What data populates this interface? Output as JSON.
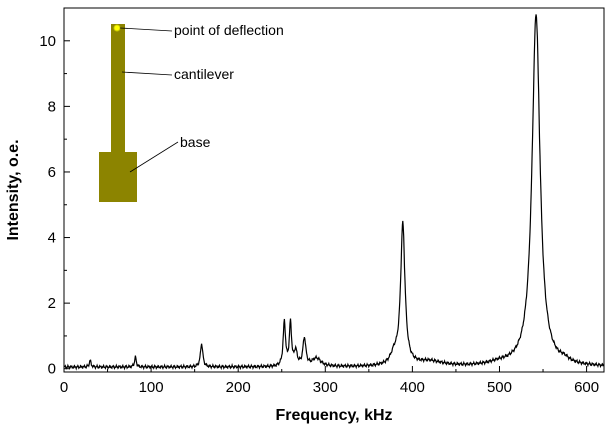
{
  "chart_data": {
    "type": "line",
    "xlabel": "Frequency, kHz",
    "ylabel": "Intensity, o.e.",
    "xlim": [
      0,
      620
    ],
    "ylim": [
      -0.1,
      11.0
    ],
    "x_ticks": [
      0,
      100,
      200,
      300,
      400,
      500,
      600
    ],
    "y_ticks": [
      0,
      2,
      4,
      6,
      8,
      10
    ],
    "grid": false,
    "line_color": "#000000",
    "baseline": 0.05,
    "peaks": [
      {
        "x": 30,
        "y": 0.2,
        "w": 1.2
      },
      {
        "x": 82,
        "y": 0.3,
        "w": 1.2
      },
      {
        "x": 158,
        "y": 0.72,
        "w": 1.6
      },
      {
        "x": 253,
        "y": 1.35,
        "w": 1.6
      },
      {
        "x": 260,
        "y": 1.3,
        "w": 1.5
      },
      {
        "x": 266,
        "y": 0.45,
        "w": 2.0
      },
      {
        "x": 276,
        "y": 0.85,
        "w": 2.0
      },
      {
        "x": 290,
        "y": 0.25,
        "w": 6.0
      },
      {
        "x": 379,
        "y": 0.3,
        "w": 5.0
      },
      {
        "x": 389,
        "y": 4.3,
        "w": 3.0
      },
      {
        "x": 420,
        "y": 0.15,
        "w": 18.0
      },
      {
        "x": 500,
        "y": 0.08,
        "w": 15.0
      },
      {
        "x": 542,
        "y": 10.75,
        "w": 5.5
      },
      {
        "x": 575,
        "y": 0.1,
        "w": 6.0
      }
    ],
    "inset": {
      "colors": {
        "cantilever": "#8c8400",
        "point": "#ffff00",
        "point_stroke": "#c9c900"
      },
      "labels": {
        "point": "point of deflection",
        "cantilever": "cantilever",
        "base": "base"
      }
    }
  }
}
